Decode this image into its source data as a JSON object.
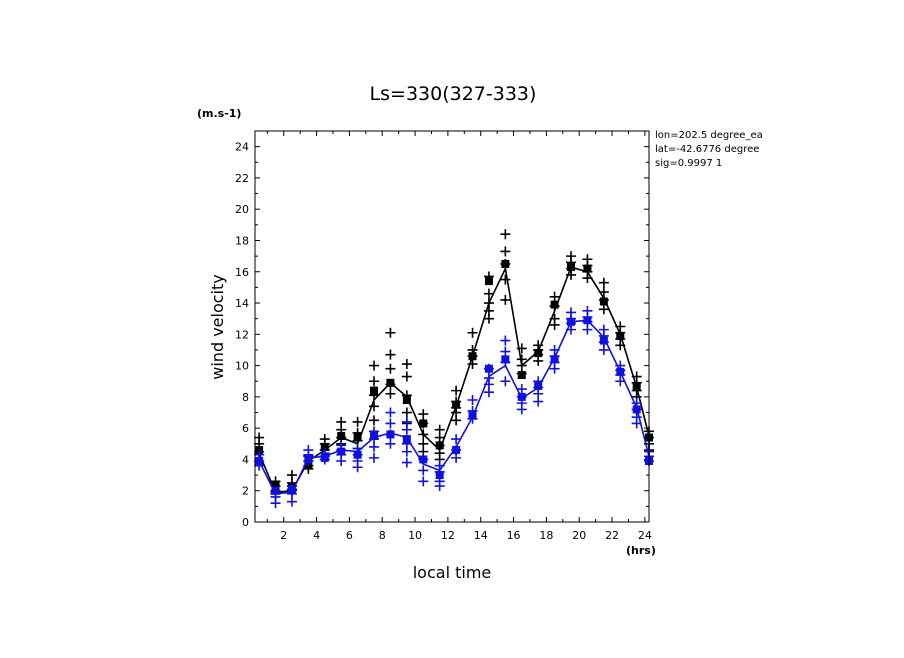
{
  "chart_data": {
    "type": "line",
    "title": "Ls=330(327-333)",
    "xlabel": "local time",
    "ylabel": "wind velocity",
    "x_unit": "(hrs)",
    "y_unit": "(m.s-1)",
    "annotations": [
      "lon=202.5 degree_ea",
      "lat=-42.6776 degree",
      "sig=0.9997 1"
    ],
    "xlim": [
      0.25,
      24.25
    ],
    "ylim": [
      0,
      25
    ],
    "xticks": [
      2,
      4,
      6,
      8,
      10,
      12,
      14,
      16,
      18,
      20,
      22,
      24
    ],
    "yticks": [
      0,
      2,
      4,
      6,
      8,
      10,
      12,
      14,
      16,
      18,
      20,
      22,
      24
    ],
    "x": [
      0.5,
      1.5,
      2.5,
      3.5,
      4.5,
      5.5,
      6.5,
      7.5,
      8.5,
      9.5,
      10.5,
      11.5,
      12.5,
      13.5,
      14.5,
      15.5,
      16.5,
      17.5,
      18.5,
      19.5,
      20.5,
      21.5,
      22.5,
      23.5,
      24.25
    ],
    "grid": false,
    "series": [
      {
        "color": "#000000",
        "values": [
          4.4,
          1.9,
          2.0,
          3.9,
          4.6,
          5.4,
          5.0,
          7.8,
          8.9,
          8.0,
          5.6,
          4.6,
          7.4,
          10.6,
          14.0,
          16.2,
          10.0,
          10.9,
          13.5,
          16.3,
          16.0,
          14.3,
          12.0,
          8.6,
          5.5
        ],
        "markers": [
          4.6,
          2.3,
          2.2,
          3.7,
          4.8,
          5.5,
          5.5,
          8.4,
          8.9,
          7.8,
          6.3,
          4.9,
          7.5,
          10.6,
          15.4,
          16.5,
          9.4,
          10.8,
          13.9,
          16.3,
          16.2,
          14.1,
          11.9,
          8.7,
          5.4
        ],
        "crosses": [
          [
            5.4,
            5.0,
            4.5,
            4.3
          ],
          [
            2.6,
            2.3,
            2.0,
            1.8
          ],
          [
            3.0,
            2.5,
            2.3,
            2.0
          ],
          [
            4.2,
            3.9,
            3.6,
            3.4
          ],
          [
            5.3,
            5.0,
            4.6,
            4.2
          ],
          [
            6.4,
            5.9,
            5.4,
            5.0
          ],
          [
            6.4,
            5.7,
            5.2,
            4.7
          ],
          [
            10.0,
            9.0,
            8.1,
            7.4,
            6.5
          ],
          [
            12.1,
            10.7,
            9.8,
            8.8,
            8.2
          ],
          [
            10.1,
            9.3,
            8.1,
            7.0,
            6.3
          ],
          [
            6.9,
            6.3,
            5.6,
            5.0,
            4.5
          ],
          [
            5.9,
            5.4,
            4.9,
            4.4,
            4.0
          ],
          [
            8.4,
            7.7,
            7.3,
            7.0,
            6.5
          ],
          [
            12.1,
            11.0,
            10.6,
            10.1
          ],
          [
            15.7,
            14.6,
            14.0,
            13.5,
            13.0
          ],
          [
            18.4,
            17.3,
            16.5,
            15.5,
            14.2
          ],
          [
            11.1,
            10.4,
            10.0,
            9.5
          ],
          [
            11.3,
            11.0,
            10.7,
            10.3
          ],
          [
            14.4,
            13.8,
            13.0,
            12.6
          ],
          [
            17.0,
            16.6,
            16.2,
            15.8
          ],
          [
            16.8,
            16.4,
            16.0,
            15.6
          ],
          [
            15.3,
            14.7,
            14.2,
            13.6
          ],
          [
            12.5,
            12.1,
            11.7,
            11.3
          ],
          [
            9.3,
            8.9,
            8.4,
            8.0
          ],
          [
            5.8,
            5.4,
            5.0,
            4.6
          ]
        ]
      },
      {
        "color": "#1010e0",
        "values": [
          3.9,
          1.8,
          1.9,
          4.1,
          4.2,
          4.6,
          4.5,
          5.4,
          5.7,
          5.4,
          3.7,
          3.3,
          4.8,
          6.7,
          9.3,
          10.0,
          7.9,
          8.6,
          10.5,
          12.8,
          12.9,
          11.8,
          9.6,
          7.3,
          4.2
        ],
        "markers": [
          3.9,
          2.0,
          2.1,
          4.0,
          4.1,
          4.5,
          4.3,
          5.5,
          5.6,
          5.3,
          4.0,
          3.0,
          4.6,
          6.8,
          9.8,
          10.4,
          8.0,
          8.7,
          10.4,
          12.8,
          12.9,
          11.6,
          9.6,
          7.2,
          3.9
        ],
        "crosses": [
          [
            4.3,
            3.9,
            3.6
          ],
          [
            1.9,
            1.6,
            1.2
          ],
          [
            2.1,
            1.8,
            1.3
          ],
          [
            4.6,
            4.3,
            3.9
          ],
          [
            4.4,
            4.2,
            4.0
          ],
          [
            4.9,
            4.6,
            4.3,
            3.9
          ],
          [
            4.7,
            4.3,
            3.9,
            3.5
          ],
          [
            5.8,
            5.3,
            4.8,
            4.1
          ],
          [
            7.0,
            6.3,
            5.6,
            5.0
          ],
          [
            6.4,
            5.9,
            5.0,
            4.5,
            3.8
          ],
          [
            4.0,
            3.3,
            2.6
          ],
          [
            3.6,
            3.2,
            2.6,
            2.3
          ],
          [
            5.3,
            4.6,
            4.1
          ],
          [
            7.8,
            7.1,
            6.6
          ],
          [
            9.8,
            9.2,
            8.8,
            8.3
          ],
          [
            11.6,
            10.9,
            10.2,
            9.0
          ],
          [
            8.5,
            8.0,
            7.6,
            7.2
          ],
          [
            9.0,
            8.6,
            8.2,
            7.7
          ],
          [
            11.0,
            10.6,
            10.2,
            9.8
          ],
          [
            13.4,
            13.0,
            12.7,
            12.3
          ],
          [
            13.5,
            13.1,
            12.8,
            12.3
          ],
          [
            12.3,
            11.9,
            11.5,
            11.0
          ],
          [
            10.0,
            9.7,
            9.4,
            9.0
          ],
          [
            7.6,
            7.2,
            6.7,
            6.3
          ],
          [
            4.5,
            4.2,
            3.9
          ]
        ]
      }
    ]
  }
}
